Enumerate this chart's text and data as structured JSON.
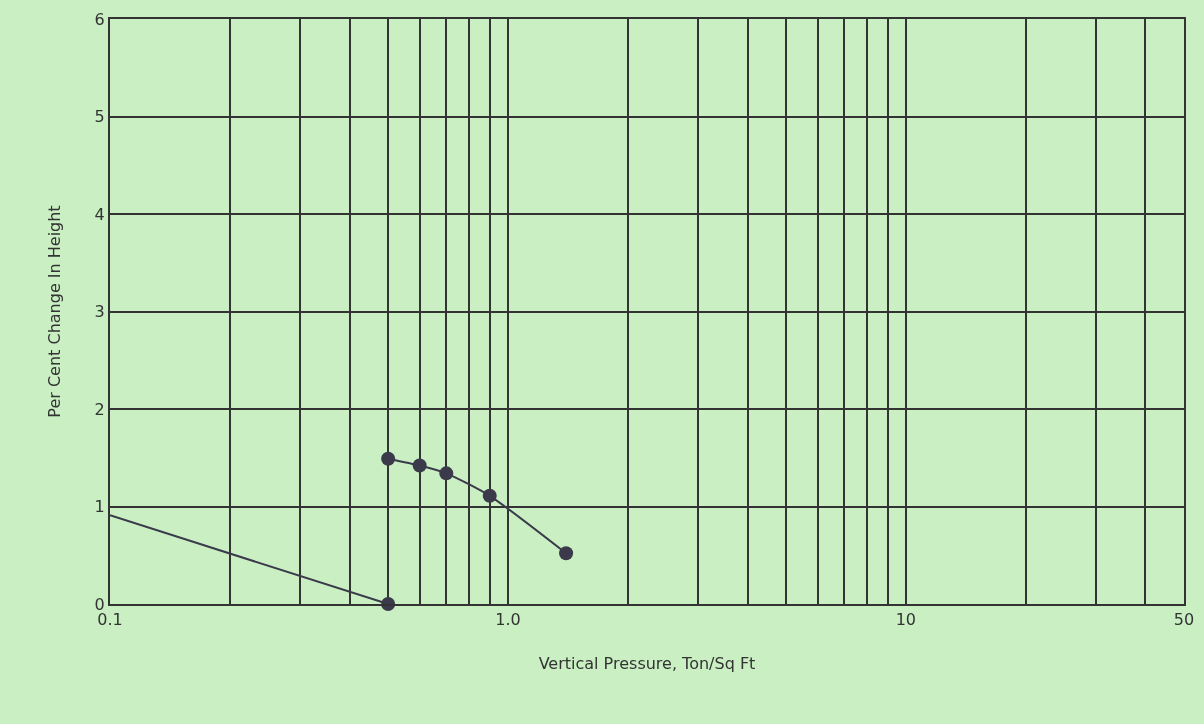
{
  "chart_data": {
    "type": "line",
    "xlabel": "Vertical Pressure, Ton/Sq Ft",
    "ylabel": "Per Cent Change In Height",
    "log": "x",
    "grid": true,
    "xlim": [
      0.1,
      50
    ],
    "ylim": [
      0,
      6
    ],
    "xticks": [
      0.1,
      {
        "value": 0.2,
        "label": null
      },
      {
        "value": 0.3,
        "label": null
      },
      {
        "value": 0.4,
        "label": null
      },
      {
        "value": 0.5,
        "label": null
      },
      {
        "value": 0.6,
        "label": null
      },
      {
        "value": 0.7,
        "label": null
      },
      {
        "value": 0.8,
        "label": null
      },
      {
        "value": 0.9,
        "label": null
      },
      {
        "value": 1,
        "label": "1.0"
      },
      {
        "value": 2,
        "label": null
      },
      {
        "value": 3,
        "label": null
      },
      {
        "value": 4,
        "label": null
      },
      {
        "value": 5,
        "label": null
      },
      {
        "value": 6,
        "label": null
      },
      {
        "value": 7,
        "label": null
      },
      {
        "value": 8,
        "label": null
      },
      {
        "value": 9,
        "label": null
      },
      10,
      {
        "value": 20,
        "label": null
      },
      {
        "value": 30,
        "label": null
      },
      {
        "value": 40,
        "label": null
      },
      50
    ],
    "yticks": [
      0,
      1,
      2,
      3,
      4,
      5,
      6
    ],
    "series": [
      {
        "marker": "none",
        "color": "#3a3a4a",
        "x": [
          0.1,
          0.5
        ],
        "values": [
          0.91,
          0
        ]
      },
      {
        "type": "scatter",
        "marker": "circle",
        "color": "#3a3a4a",
        "x": [
          0.5
        ],
        "values": [
          0
        ]
      },
      {
        "marker": "circle",
        "color": "#3a3a4a",
        "x": [
          0.5,
          0.6,
          0.7,
          0.9,
          1.4
        ],
        "values": [
          1.49,
          1.42,
          1.34,
          1.11,
          0.52
        ]
      }
    ]
  }
}
